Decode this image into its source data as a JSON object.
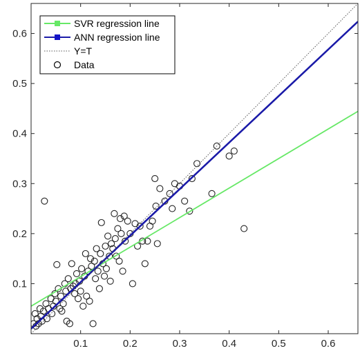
{
  "chart_data": {
    "type": "scatter",
    "title": "",
    "xlabel": "",
    "ylabel": "",
    "xlim": [
      0,
      0.66
    ],
    "ylim": [
      0,
      0.66
    ],
    "x_ticks": [
      0.1,
      0.2,
      0.3,
      0.4,
      0.5,
      0.6
    ],
    "y_ticks": [
      0.1,
      0.2,
      0.3,
      0.4,
      0.5,
      0.6
    ],
    "x_tick_labels": [
      "0.1",
      "0.2",
      "0.3",
      "0.4",
      "0.5",
      "0.6"
    ],
    "y_tick_labels": [
      "0.1",
      "0.2",
      "0.3",
      "0.4",
      "0.5",
      "0.6"
    ],
    "grid": false,
    "legend_position": "top-left",
    "lines": [
      {
        "name": "SVR regression line",
        "color": "#66e866",
        "style": "solid",
        "intercept": 0.055,
        "slope": 0.59
      },
      {
        "name": "ANN regression line",
        "color": "#1a1aa8",
        "style": "solid",
        "intercept": 0.01,
        "slope": 0.93
      },
      {
        "name": "Y=T",
        "color": "#555555",
        "style": "dotted",
        "intercept": 0,
        "slope": 1
      }
    ],
    "scatter_series": {
      "name": "Data",
      "marker": "circle",
      "points": [
        [
          0.005,
          0.02
        ],
        [
          0.008,
          0.04
        ],
        [
          0.01,
          0.015
        ],
        [
          0.012,
          0.03
        ],
        [
          0.015,
          0.02
        ],
        [
          0.018,
          0.05
        ],
        [
          0.02,
          0.035
        ],
        [
          0.022,
          0.025
        ],
        [
          0.025,
          0.045
        ],
        [
          0.027,
          0.265
        ],
        [
          0.03,
          0.06
        ],
        [
          0.032,
          0.03
        ],
        [
          0.035,
          0.05
        ],
        [
          0.04,
          0.07
        ],
        [
          0.042,
          0.04
        ],
        [
          0.045,
          0.055
        ],
        [
          0.048,
          0.08
        ],
        [
          0.05,
          0.065
        ],
        [
          0.052,
          0.138
        ],
        [
          0.055,
          0.09
        ],
        [
          0.058,
          0.05
        ],
        [
          0.06,
          0.075
        ],
        [
          0.062,
          0.045
        ],
        [
          0.065,
          0.06
        ],
        [
          0.068,
          0.1
        ],
        [
          0.07,
          0.085
        ],
        [
          0.072,
          0.025
        ],
        [
          0.075,
          0.11
        ],
        [
          0.078,
          0.02
        ],
        [
          0.08,
          0.09
        ],
        [
          0.082,
          0.14
        ],
        [
          0.085,
          0.095
        ],
        [
          0.088,
          0.08
        ],
        [
          0.09,
          0.1
        ],
        [
          0.092,
          0.12
        ],
        [
          0.095,
          0.07
        ],
        [
          0.098,
          0.105
        ],
        [
          0.1,
          0.085
        ],
        [
          0.102,
          0.13
        ],
        [
          0.105,
          0.055
        ],
        [
          0.108,
          0.115
        ],
        [
          0.11,
          0.16
        ],
        [
          0.112,
          0.075
        ],
        [
          0.115,
          0.125
        ],
        [
          0.118,
          0.065
        ],
        [
          0.12,
          0.15
        ],
        [
          0.122,
          0.135
        ],
        [
          0.125,
          0.02
        ],
        [
          0.128,
          0.145
        ],
        [
          0.13,
          0.11
        ],
        [
          0.132,
          0.17
        ],
        [
          0.135,
          0.125
        ],
        [
          0.138,
          0.09
        ],
        [
          0.14,
          0.16
        ],
        [
          0.142,
          0.222
        ],
        [
          0.145,
          0.14
        ],
        [
          0.148,
          0.115
        ],
        [
          0.15,
          0.175
        ],
        [
          0.152,
          0.13
        ],
        [
          0.155,
          0.195
        ],
        [
          0.158,
          0.155
        ],
        [
          0.16,
          0.105
        ],
        [
          0.162,
          0.18
        ],
        [
          0.165,
          0.17
        ],
        [
          0.168,
          0.24
        ],
        [
          0.17,
          0.19
        ],
        [
          0.172,
          0.155
        ],
        [
          0.175,
          0.21
        ],
        [
          0.178,
          0.145
        ],
        [
          0.18,
          0.23
        ],
        [
          0.182,
          0.2
        ],
        [
          0.185,
          0.125
        ],
        [
          0.188,
          0.235
        ],
        [
          0.19,
          0.185
        ],
        [
          0.195,
          0.225
        ],
        [
          0.2,
          0.2
        ],
        [
          0.205,
          0.1
        ],
        [
          0.21,
          0.22
        ],
        [
          0.215,
          0.175
        ],
        [
          0.22,
          0.215
        ],
        [
          0.225,
          0.185
        ],
        [
          0.23,
          0.14
        ],
        [
          0.235,
          0.185
        ],
        [
          0.24,
          0.215
        ],
        [
          0.245,
          0.225
        ],
        [
          0.25,
          0.31
        ],
        [
          0.252,
          0.255
        ],
        [
          0.255,
          0.18
        ],
        [
          0.26,
          0.29
        ],
        [
          0.27,
          0.265
        ],
        [
          0.28,
          0.28
        ],
        [
          0.285,
          0.25
        ],
        [
          0.29,
          0.3
        ],
        [
          0.3,
          0.295
        ],
        [
          0.31,
          0.265
        ],
        [
          0.32,
          0.245
        ],
        [
          0.325,
          0.31
        ],
        [
          0.335,
          0.34
        ],
        [
          0.365,
          0.28
        ],
        [
          0.375,
          0.375
        ],
        [
          0.4,
          0.355
        ],
        [
          0.41,
          0.365
        ],
        [
          0.43,
          0.21
        ]
      ]
    }
  },
  "legend": {
    "items": [
      {
        "label": "SVR regression line",
        "color": "#66e866",
        "style": "solid-marker"
      },
      {
        "label": "ANN regression line",
        "color": "#1a1aa8",
        "style": "solid-marker"
      },
      {
        "label": "Y=T",
        "color": "#555555",
        "style": "dotted"
      },
      {
        "label": "Data",
        "color": "#000000",
        "style": "circle"
      }
    ]
  }
}
